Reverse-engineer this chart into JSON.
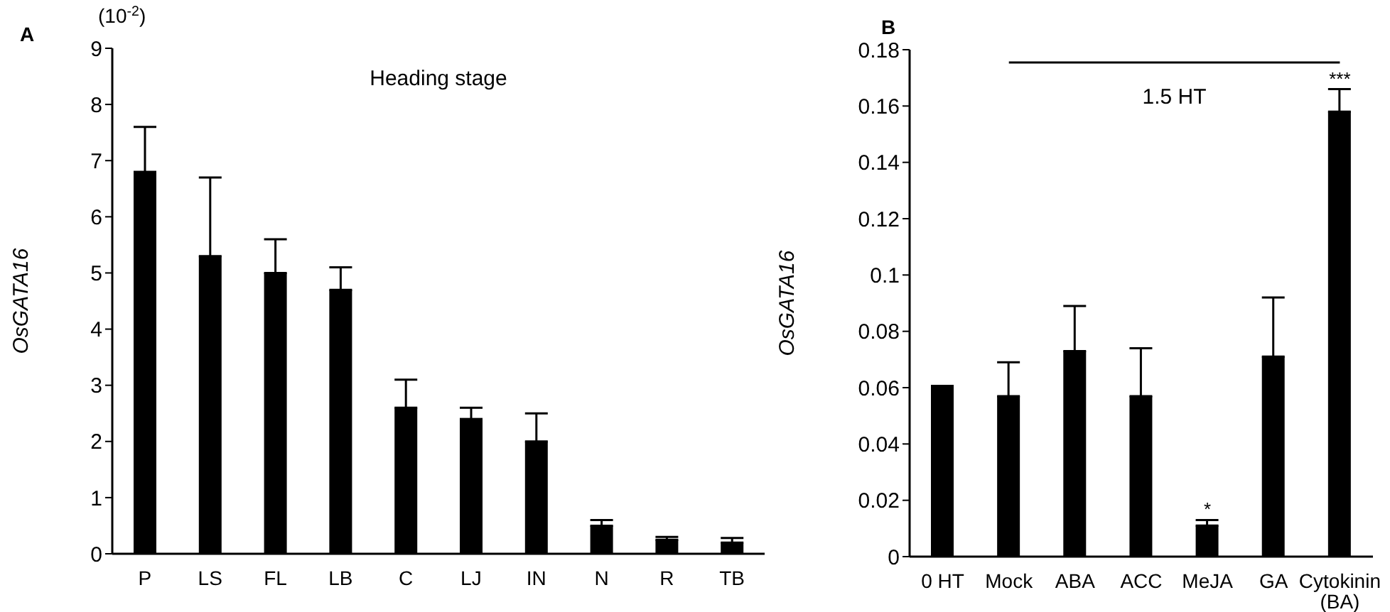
{
  "chart_data": [
    {
      "type": "bar",
      "title": "A",
      "subtitle": "Heading stage",
      "ylabel": "OsGATA16",
      "annotations": [
        "(10$^{-2}$)"
      ],
      "categories": [
        "P",
        "LS",
        "FL",
        "LB",
        "C",
        "LJ",
        "IN",
        "N",
        "R",
        "TB"
      ],
      "values": [
        6.8,
        5.3,
        5.0,
        4.7,
        2.6,
        2.4,
        2.0,
        0.5,
        0.25,
        0.2
      ],
      "errors": [
        [
          6.8,
          7.6
        ],
        [
          5.3,
          6.7
        ],
        [
          5.0,
          5.6
        ],
        [
          4.7,
          5.1
        ],
        [
          2.6,
          3.1
        ],
        [
          2.4,
          2.6
        ],
        [
          2.0,
          2.5
        ],
        [
          0.5,
          0.6
        ],
        [
          0.25,
          0.3
        ],
        [
          0.2,
          0.28
        ]
      ],
      "color": "#000000",
      "ylim": [
        0,
        9
      ],
      "yticks": [
        0,
        1,
        2,
        3,
        4,
        5,
        6,
        7,
        8,
        9
      ]
    },
    {
      "type": "bar",
      "title": "B",
      "ylabel": "OsGATA16",
      "annotations": [
        "1.5 HT",
        {
          "text": "*",
          "x": "MeJA",
          "y": 0.011
        },
        {
          "text": "***",
          "x": "Cytokinin (BA)",
          "y": 0.158
        }
      ],
      "categories": [
        "0 HT",
        "Mock",
        "ABA",
        "ACC",
        "MeJA",
        "GA",
        "Cytokinin (BA)"
      ],
      "values": [
        0.061,
        0.057,
        0.073,
        0.057,
        0.011,
        0.071,
        0.158
      ],
      "errors": [
        null,
        [
          0.057,
          0.069
        ],
        [
          0.073,
          0.089
        ],
        [
          0.057,
          0.074
        ],
        [
          0.011,
          0.013
        ],
        [
          0.071,
          0.092
        ],
        [
          0.158,
          0.166
        ]
      ],
      "color": "#000000",
      "ylim": [
        0,
        0.18
      ],
      "yticks": [
        0,
        0.02,
        0.04,
        0.06,
        0.08,
        0.1,
        0.12,
        0.14,
        0.16,
        0.18
      ]
    }
  ]
}
